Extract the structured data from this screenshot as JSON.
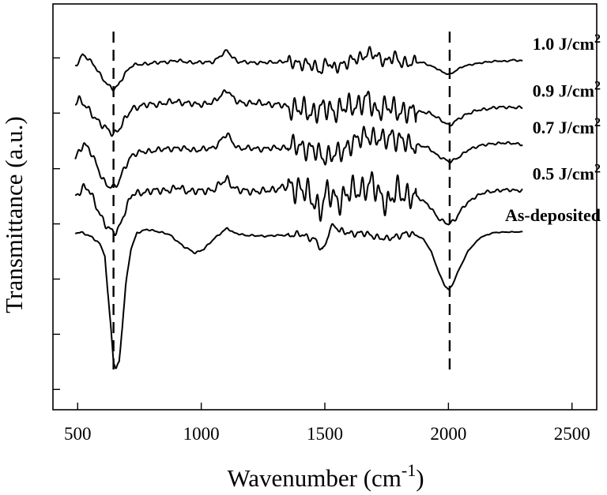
{
  "chart_data": {
    "type": "line",
    "xlabel": "Wavenumber (cm",
    "xlabel_superscript": "-1",
    "xlabel_suffix": ")",
    "ylabel": "Transmittance (a.u.)",
    "xlim": [
      400,
      2600
    ],
    "ylim": [
      0,
      1
    ],
    "x_ticks": [
      500,
      1000,
      1500,
      2000,
      2500
    ],
    "x_tick_labels": [
      "500",
      "1000",
      "1500",
      "2000",
      "2500"
    ],
    "y_ticks": [
      0.05,
      0.186,
      0.322,
      0.458,
      0.594,
      0.731,
      0.867
    ],
    "y_tick_labels_shown": false,
    "grid": false,
    "reference_lines_x": [
      645,
      2005
    ],
    "series": [
      {
        "name": "1.0 J/cm",
        "label_superscript": "2",
        "noise_amp": 0.012,
        "points": [
          [
            490,
            0.846
          ],
          [
            505,
            0.86
          ],
          [
            520,
            0.876
          ],
          [
            540,
            0.866
          ],
          [
            570,
            0.846
          ],
          [
            600,
            0.818
          ],
          [
            625,
            0.798
          ],
          [
            645,
            0.789
          ],
          [
            665,
            0.8
          ],
          [
            690,
            0.828
          ],
          [
            720,
            0.848
          ],
          [
            760,
            0.852
          ],
          [
            820,
            0.855
          ],
          [
            900,
            0.86
          ],
          [
            980,
            0.855
          ],
          [
            1050,
            0.858
          ],
          [
            1085,
            0.875
          ],
          [
            1105,
            0.886
          ],
          [
            1125,
            0.87
          ],
          [
            1150,
            0.857
          ],
          [
            1250,
            0.855
          ],
          [
            1330,
            0.858
          ],
          [
            1380,
            0.856
          ],
          [
            1420,
            0.852
          ],
          [
            1460,
            0.845
          ],
          [
            1490,
            0.838
          ],
          [
            1510,
            0.862
          ],
          [
            1530,
            0.838
          ],
          [
            1560,
            0.85
          ],
          [
            1600,
            0.858
          ],
          [
            1640,
            0.866
          ],
          [
            1670,
            0.88
          ],
          [
            1690,
            0.878
          ],
          [
            1710,
            0.868
          ],
          [
            1750,
            0.86
          ],
          [
            1780,
            0.872
          ],
          [
            1800,
            0.855
          ],
          [
            1850,
            0.857
          ],
          [
            1900,
            0.855
          ],
          [
            1950,
            0.842
          ],
          [
            1975,
            0.832
          ],
          [
            2005,
            0.826
          ],
          [
            2030,
            0.836
          ],
          [
            2060,
            0.846
          ],
          [
            2100,
            0.852
          ],
          [
            2160,
            0.857
          ],
          [
            2200,
            0.86
          ],
          [
            2230,
            0.858
          ],
          [
            2260,
            0.862
          ],
          [
            2300,
            0.86
          ]
        ]
      },
      {
        "name": "0.9 J/cm",
        "label_superscript": "2",
        "noise_amp": 0.022,
        "points": [
          [
            490,
            0.756
          ],
          [
            505,
            0.765
          ],
          [
            525,
            0.752
          ],
          [
            545,
            0.74
          ],
          [
            570,
            0.72
          ],
          [
            600,
            0.7
          ],
          [
            625,
            0.688
          ],
          [
            645,
            0.68
          ],
          [
            665,
            0.69
          ],
          [
            690,
            0.714
          ],
          [
            720,
            0.742
          ],
          [
            760,
            0.75
          ],
          [
            820,
            0.753
          ],
          [
            900,
            0.76
          ],
          [
            980,
            0.752
          ],
          [
            1050,
            0.757
          ],
          [
            1085,
            0.778
          ],
          [
            1105,
            0.79
          ],
          [
            1125,
            0.77
          ],
          [
            1150,
            0.757
          ],
          [
            1250,
            0.755
          ],
          [
            1330,
            0.75
          ],
          [
            1400,
            0.74
          ],
          [
            1450,
            0.733
          ],
          [
            1500,
            0.742
          ],
          [
            1550,
            0.738
          ],
          [
            1600,
            0.748
          ],
          [
            1650,
            0.755
          ],
          [
            1680,
            0.765
          ],
          [
            1700,
            0.738
          ],
          [
            1750,
            0.745
          ],
          [
            1800,
            0.738
          ],
          [
            1850,
            0.73
          ],
          [
            1880,
            0.735
          ],
          [
            1920,
            0.732
          ],
          [
            1960,
            0.718
          ],
          [
            2005,
            0.7
          ],
          [
            2040,
            0.716
          ],
          [
            2070,
            0.728
          ],
          [
            2120,
            0.738
          ],
          [
            2180,
            0.744
          ],
          [
            2230,
            0.746
          ],
          [
            2300,
            0.744
          ]
        ]
      },
      {
        "name": "0.7 J/cm",
        "label_superscript": "2",
        "noise_amp": 0.02,
        "points": [
          [
            490,
            0.616
          ],
          [
            505,
            0.636
          ],
          [
            525,
            0.656
          ],
          [
            545,
            0.645
          ],
          [
            570,
            0.612
          ],
          [
            600,
            0.568
          ],
          [
            625,
            0.552
          ],
          [
            645,
            0.548
          ],
          [
            665,
            0.558
          ],
          [
            690,
            0.598
          ],
          [
            720,
            0.628
          ],
          [
            760,
            0.635
          ],
          [
            820,
            0.64
          ],
          [
            900,
            0.645
          ],
          [
            980,
            0.64
          ],
          [
            1050,
            0.645
          ],
          [
            1085,
            0.668
          ],
          [
            1105,
            0.68
          ],
          [
            1125,
            0.66
          ],
          [
            1150,
            0.645
          ],
          [
            1250,
            0.643
          ],
          [
            1330,
            0.646
          ],
          [
            1400,
            0.65
          ],
          [
            1450,
            0.64
          ],
          [
            1490,
            0.625
          ],
          [
            1520,
            0.628
          ],
          [
            1560,
            0.63
          ],
          [
            1600,
            0.655
          ],
          [
            1650,
            0.668
          ],
          [
            1670,
            0.68
          ],
          [
            1700,
            0.67
          ],
          [
            1740,
            0.662
          ],
          [
            1770,
            0.68
          ],
          [
            1790,
            0.664
          ],
          [
            1840,
            0.655
          ],
          [
            1880,
            0.652
          ],
          [
            1920,
            0.645
          ],
          [
            1960,
            0.625
          ],
          [
            2005,
            0.61
          ],
          [
            2040,
            0.622
          ],
          [
            2080,
            0.64
          ],
          [
            2130,
            0.652
          ],
          [
            2180,
            0.655
          ],
          [
            2220,
            0.658
          ],
          [
            2260,
            0.656
          ],
          [
            2300,
            0.654
          ]
        ]
      },
      {
        "name": "0.5 J/cm",
        "label_superscript": "2",
        "noise_amp": 0.026,
        "points": [
          [
            490,
            0.528
          ],
          [
            505,
            0.536
          ],
          [
            525,
            0.548
          ],
          [
            545,
            0.542
          ],
          [
            570,
            0.51
          ],
          [
            600,
            0.47
          ],
          [
            625,
            0.445
          ],
          [
            645,
            0.436
          ],
          [
            665,
            0.445
          ],
          [
            690,
            0.488
          ],
          [
            720,
            0.53
          ],
          [
            760,
            0.536
          ],
          [
            820,
            0.54
          ],
          [
            880,
            0.542
          ],
          [
            910,
            0.548
          ],
          [
            940,
            0.54
          ],
          [
            980,
            0.538
          ],
          [
            1050,
            0.542
          ],
          [
            1085,
            0.56
          ],
          [
            1105,
            0.57
          ],
          [
            1125,
            0.552
          ],
          [
            1150,
            0.54
          ],
          [
            1250,
            0.538
          ],
          [
            1330,
            0.548
          ],
          [
            1400,
            0.548
          ],
          [
            1440,
            0.525
          ],
          [
            1480,
            0.495
          ],
          [
            1510,
            0.535
          ],
          [
            1550,
            0.515
          ],
          [
            1600,
            0.535
          ],
          [
            1650,
            0.545
          ],
          [
            1690,
            0.555
          ],
          [
            1730,
            0.525
          ],
          [
            1760,
            0.508
          ],
          [
            1790,
            0.54
          ],
          [
            1840,
            0.528
          ],
          [
            1880,
            0.522
          ],
          [
            1920,
            0.505
          ],
          [
            1960,
            0.47
          ],
          [
            2000,
            0.458
          ],
          [
            2030,
            0.47
          ],
          [
            2060,
            0.5
          ],
          [
            2100,
            0.522
          ],
          [
            2150,
            0.536
          ],
          [
            2200,
            0.54
          ],
          [
            2250,
            0.542
          ],
          [
            2300,
            0.54
          ]
        ]
      },
      {
        "name": "As-deposited",
        "label_superscript": "",
        "noise_amp": 0.006,
        "points": [
          [
            490,
            0.436
          ],
          [
            520,
            0.436
          ],
          [
            560,
            0.425
          ],
          [
            590,
            0.408
          ],
          [
            610,
            0.38
          ],
          [
            620,
            0.3
          ],
          [
            635,
            0.2
          ],
          [
            645,
            0.118
          ],
          [
            655,
            0.1
          ],
          [
            668,
            0.12
          ],
          [
            680,
            0.2
          ],
          [
            695,
            0.31
          ],
          [
            715,
            0.395
          ],
          [
            740,
            0.436
          ],
          [
            780,
            0.444
          ],
          [
            820,
            0.44
          ],
          [
            870,
            0.432
          ],
          [
            930,
            0.402
          ],
          [
            975,
            0.386
          ],
          [
            1010,
            0.396
          ],
          [
            1050,
            0.42
          ],
          [
            1080,
            0.436
          ],
          [
            1105,
            0.448
          ],
          [
            1130,
            0.436
          ],
          [
            1180,
            0.43
          ],
          [
            1250,
            0.428
          ],
          [
            1330,
            0.43
          ],
          [
            1400,
            0.432
          ],
          [
            1460,
            0.42
          ],
          [
            1490,
            0.39
          ],
          [
            1505,
            0.41
          ],
          [
            1520,
            0.448
          ],
          [
            1540,
            0.455
          ],
          [
            1560,
            0.44
          ],
          [
            1600,
            0.435
          ],
          [
            1650,
            0.435
          ],
          [
            1700,
            0.428
          ],
          [
            1750,
            0.42
          ],
          [
            1790,
            0.428
          ],
          [
            1830,
            0.434
          ],
          [
            1870,
            0.43
          ],
          [
            1900,
            0.42
          ],
          [
            1930,
            0.39
          ],
          [
            1960,
            0.34
          ],
          [
            1985,
            0.306
          ],
          [
            2000,
            0.296
          ],
          [
            2015,
            0.306
          ],
          [
            2040,
            0.342
          ],
          [
            2080,
            0.392
          ],
          [
            2130,
            0.425
          ],
          [
            2180,
            0.436
          ],
          [
            2230,
            0.438
          ],
          [
            2300,
            0.438
          ]
        ]
      }
    ]
  }
}
